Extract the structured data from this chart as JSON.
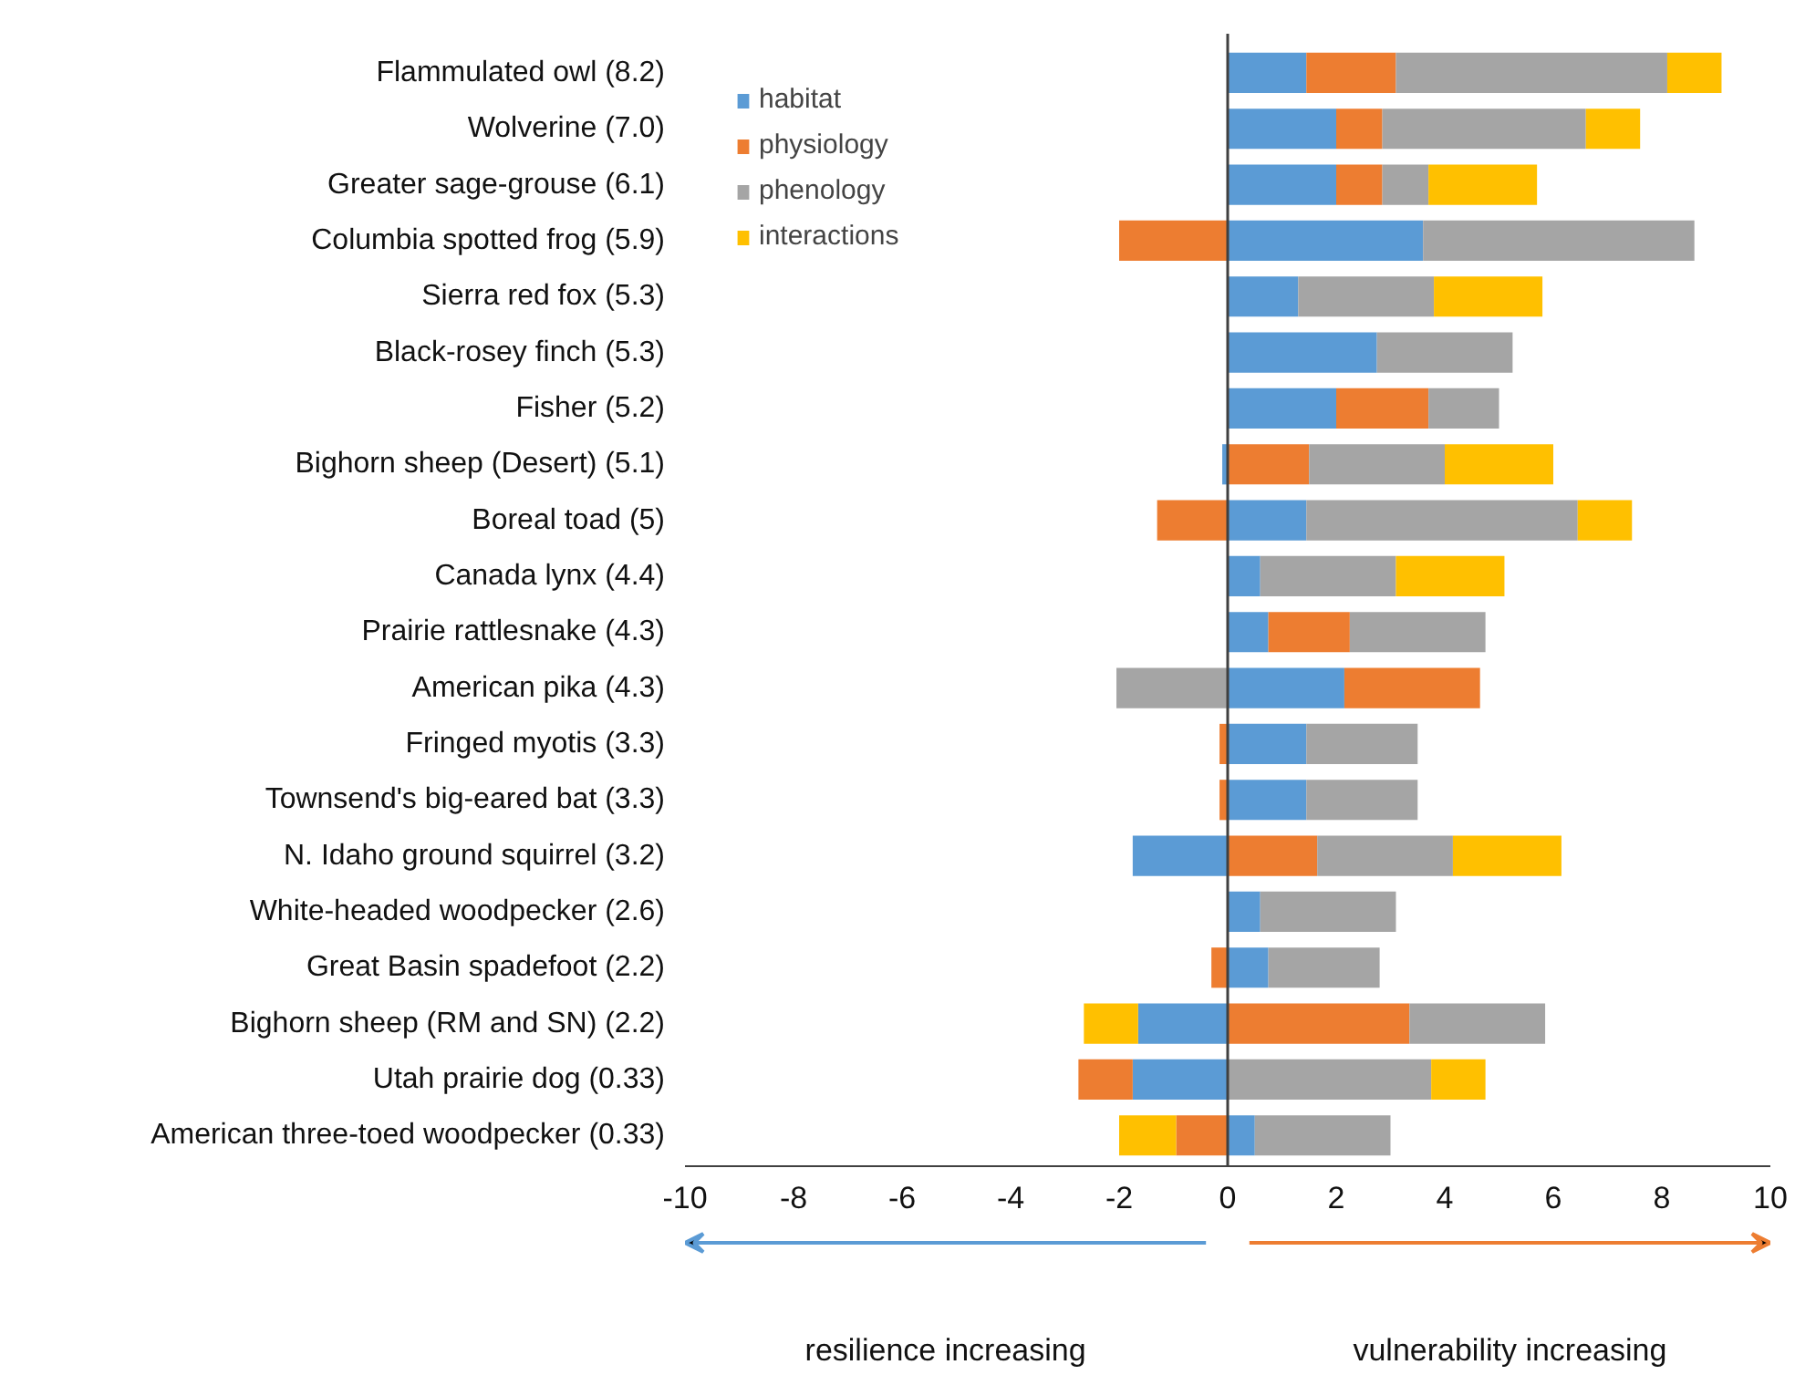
{
  "chart_data": {
    "type": "bar",
    "orientation": "horizontal",
    "stacked": true,
    "categories": [
      "Flammulated owl (8.2)",
      "Wolverine (7.0)",
      "Greater sage-grouse (6.1)",
      "Columbia spotted frog (5.9)",
      "Sierra red fox (5.3)",
      "Black-rosey finch (5.3)",
      "Fisher (5.2)",
      "Bighorn sheep (Desert) (5.1)",
      "Boreal toad (5)",
      "Canada lynx (4.4)",
      "Prairie rattlesnake (4.3)",
      "American pika (4.3)",
      "Fringed myotis (3.3)",
      "Townsend's big-eared bat (3.3)",
      "N. Idaho ground squirrel (3.2)",
      "White-headed woodpecker (2.6)",
      "Great Basin spadefoot (2.2)",
      "Bighorn sheep (RM and SN) (2.2)",
      "Utah prairie dog (0.33)",
      "American three-toed woodpecker (0.33)"
    ],
    "series": [
      {
        "name": "habitat",
        "color": "#5b9bd5",
        "values": [
          1.45,
          2.0,
          2.0,
          3.6,
          1.3,
          2.75,
          2.0,
          -0.1,
          1.45,
          0.6,
          0.75,
          2.15,
          1.45,
          1.45,
          -1.75,
          0.6,
          0.75,
          -1.65,
          -1.75,
          0.5
        ]
      },
      {
        "name": "physiology",
        "color": "#ed7d31",
        "values": [
          1.65,
          0.85,
          0.85,
          -2.0,
          null,
          null,
          1.7,
          1.5,
          -1.3,
          null,
          1.5,
          2.5,
          -0.15,
          -0.15,
          1.65,
          null,
          -0.3,
          3.35,
          -1.0,
          -0.95
        ]
      },
      {
        "name": "phenology",
        "color": "#a5a5a5",
        "values": [
          5.0,
          3.75,
          0.85,
          5.0,
          2.5,
          2.5,
          1.3,
          2.5,
          5.0,
          2.5,
          2.5,
          -2.05,
          2.05,
          2.05,
          2.5,
          2.5,
          2.05,
          2.5,
          3.75,
          2.5
        ]
      },
      {
        "name": "interactions",
        "color": "#ffc000",
        "values": [
          1.0,
          1.0,
          2.0,
          null,
          2.0,
          null,
          null,
          2.0,
          1.0,
          2.0,
          null,
          null,
          null,
          null,
          2.0,
          null,
          null,
          -1.0,
          1.0,
          -1.05
        ]
      }
    ],
    "xlim": [
      -10,
      10
    ],
    "xticks": [
      -10,
      -8,
      -6,
      -4,
      -2,
      0,
      2,
      4,
      6,
      8,
      10
    ],
    "ref_lines": [
      {
        "axis": "x",
        "value": 0,
        "color": "#404040"
      }
    ],
    "annotations": [
      "resilience increasing",
      "vulnerability increasing"
    ],
    "legend": "top left",
    "grid": false
  }
}
